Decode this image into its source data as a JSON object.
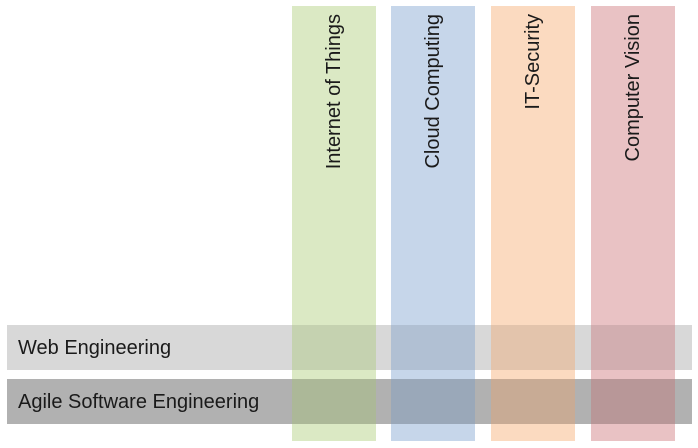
{
  "columns": [
    {
      "label": "Internet of Things",
      "color": "#c5dca0"
    },
    {
      "label": "Cloud Computing",
      "color": "#a3bddd"
    },
    {
      "label": "IT-Security",
      "color": "#f9c49a"
    },
    {
      "label": "Computer Vision",
      "color": "#dc9da0"
    }
  ],
  "rows": [
    {
      "label": "Web Engineering",
      "color": "#e6e6e6"
    },
    {
      "label": "Agile Software Engineering",
      "color": "#cfcfcf"
    }
  ]
}
